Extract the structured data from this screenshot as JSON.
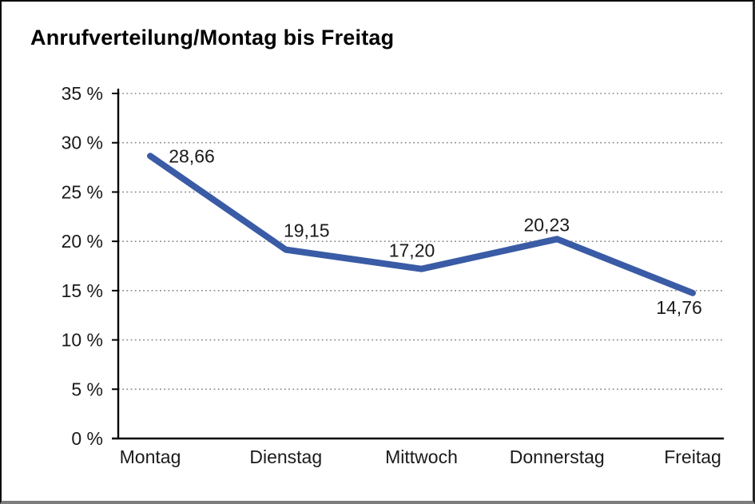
{
  "title": "Anrufverteilung/Montag bis Freitag",
  "chart_data": {
    "type": "line",
    "title": "Anrufverteilung/Montag bis Freitag",
    "categories": [
      "Montag",
      "Dienstag",
      "Mittwoch",
      "Donnerstag",
      "Freitag"
    ],
    "values": [
      28.66,
      19.15,
      17.2,
      20.23,
      14.76
    ],
    "point_labels": [
      "28,66",
      "19,15",
      "17,20",
      "20,23",
      "14,76"
    ],
    "series_name": "Anrufverteilung",
    "xlabel": "",
    "ylabel": "",
    "ylim": [
      0,
      35
    ],
    "y_step": 5,
    "y_tick_labels": [
      "0 %",
      "5 %",
      "10 %",
      "15 %",
      "20 %",
      "25 %",
      "30 %",
      "35 %"
    ],
    "grid": "horizontal-dotted",
    "legend": "none",
    "line_color": "#3A5BA5",
    "axis_color": "#000000",
    "gridline_color": "#8c8c8c",
    "text_color": "#1a1a1a"
  }
}
